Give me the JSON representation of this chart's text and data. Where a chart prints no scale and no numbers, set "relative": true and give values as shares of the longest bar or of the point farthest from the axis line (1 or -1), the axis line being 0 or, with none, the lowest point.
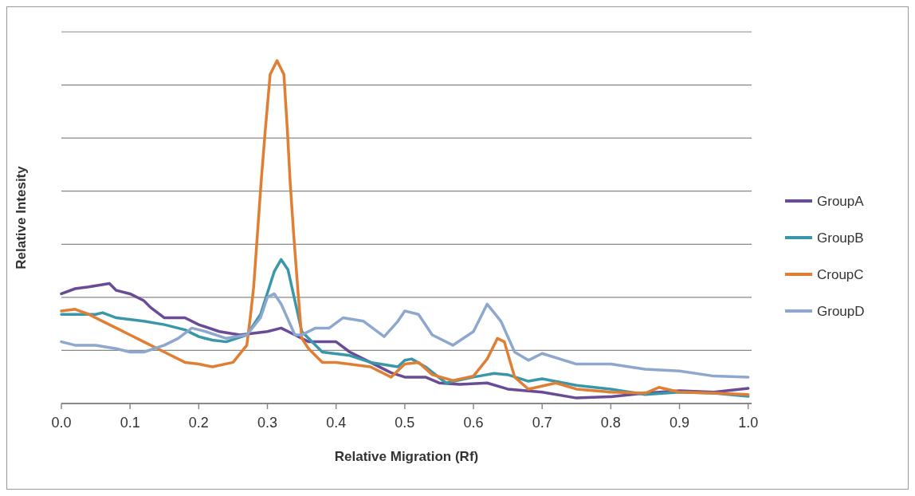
{
  "chart_data": {
    "type": "line",
    "xlabel": "Relative Migration (Rf)",
    "ylabel": "Relative Intesity",
    "relative": true,
    "grid": "y",
    "legend": "right",
    "marker": "none",
    "line_style": "solid",
    "xlim": [
      0,
      1.005
    ],
    "xticks": [
      {
        "value": 0,
        "label": "0.0"
      },
      {
        "value": 0.1,
        "label": "0.1"
      },
      {
        "value": 0.2,
        "label": "0.2"
      },
      {
        "value": 0.3,
        "label": "0.3"
      },
      {
        "value": 0.4,
        "label": "0.4"
      },
      {
        "value": 0.5,
        "label": "0.5"
      },
      {
        "value": 0.6,
        "label": "0.6"
      },
      {
        "value": 0.7,
        "label": "0.7"
      },
      {
        "value": 0.8,
        "label": "0.8"
      },
      {
        "value": 0.9,
        "label": "0.9"
      },
      {
        "value": 1,
        "label": "1.0"
      }
    ],
    "series": [
      {
        "name": "GroupA",
        "color": "#6a4b96",
        "x": [
          0,
          0.02,
          0.04,
          0.07,
          0.08,
          0.1,
          0.12,
          0.13,
          0.15,
          0.18,
          0.2,
          0.23,
          0.26,
          0.3,
          0.32,
          0.34,
          0.36,
          0.38,
          0.4,
          0.42,
          0.45,
          0.48,
          0.5,
          0.53,
          0.55,
          0.58,
          0.62,
          0.65,
          0.7,
          0.75,
          0.8,
          0.85,
          0.9,
          0.95,
          1.0
        ],
        "values": [
          0.32,
          0.335,
          0.34,
          0.35,
          0.33,
          0.32,
          0.3,
          0.28,
          0.25,
          0.25,
          0.23,
          0.21,
          0.2,
          0.21,
          0.22,
          0.2,
          0.18,
          0.18,
          0.18,
          0.15,
          0.12,
          0.09,
          0.077,
          0.077,
          0.06,
          0.056,
          0.06,
          0.042,
          0.033,
          0.016,
          0.02,
          0.03,
          0.037,
          0.033,
          0.044
        ]
      },
      {
        "name": "GroupB",
        "color": "#3a97aa",
        "x": [
          0,
          0.05,
          0.06,
          0.08,
          0.12,
          0.15,
          0.18,
          0.2,
          0.22,
          0.24,
          0.27,
          0.29,
          0.31,
          0.32,
          0.33,
          0.34,
          0.35,
          0.38,
          0.42,
          0.45,
          0.49,
          0.5,
          0.51,
          0.53,
          0.56,
          0.6,
          0.63,
          0.65,
          0.68,
          0.7,
          0.75,
          0.8,
          0.85,
          0.9,
          0.95,
          1.0
        ],
        "values": [
          0.26,
          0.26,
          0.265,
          0.25,
          0.24,
          0.23,
          0.215,
          0.195,
          0.185,
          0.18,
          0.2,
          0.26,
          0.385,
          0.42,
          0.39,
          0.3,
          0.21,
          0.15,
          0.14,
          0.12,
          0.107,
          0.126,
          0.13,
          0.107,
          0.06,
          0.077,
          0.088,
          0.084,
          0.065,
          0.072,
          0.053,
          0.042,
          0.026,
          0.033,
          0.03,
          0.021
        ]
      },
      {
        "name": "CroupC",
        "color": "#e07f33",
        "x": [
          0,
          0.02,
          0.04,
          0.06,
          0.08,
          0.1,
          0.12,
          0.15,
          0.18,
          0.2,
          0.22,
          0.25,
          0.27,
          0.275,
          0.28,
          0.291,
          0.297,
          0.304,
          0.314,
          0.324,
          0.329,
          0.333,
          0.338,
          0.344,
          0.35,
          0.36,
          0.38,
          0.4,
          0.45,
          0.48,
          0.5,
          0.52,
          0.54,
          0.57,
          0.6,
          0.62,
          0.635,
          0.645,
          0.66,
          0.68,
          0.72,
          0.75,
          0.8,
          0.85,
          0.87,
          0.9,
          0.95,
          1.0
        ],
        "values": [
          0.27,
          0.275,
          0.26,
          0.24,
          0.22,
          0.2,
          0.18,
          0.15,
          0.12,
          0.115,
          0.107,
          0.12,
          0.17,
          0.25,
          0.34,
          0.65,
          0.8,
          0.96,
          1,
          0.96,
          0.8,
          0.65,
          0.5,
          0.34,
          0.19,
          0.16,
          0.12,
          0.12,
          0.107,
          0.077,
          0.115,
          0.12,
          0.084,
          0.067,
          0.08,
          0.13,
          0.19,
          0.18,
          0.077,
          0.042,
          0.06,
          0.042,
          0.033,
          0.03,
          0.047,
          0.033,
          0.03,
          0.026
        ]
      },
      {
        "name": "GroupD",
        "color": "#8ea7cf",
        "x": [
          0,
          0.02,
          0.05,
          0.08,
          0.1,
          0.12,
          0.15,
          0.17,
          0.19,
          0.21,
          0.24,
          0.27,
          0.29,
          0.3,
          0.31,
          0.32,
          0.34,
          0.35,
          0.37,
          0.39,
          0.41,
          0.44,
          0.47,
          0.49,
          0.5,
          0.52,
          0.54,
          0.57,
          0.6,
          0.62,
          0.64,
          0.66,
          0.68,
          0.7,
          0.75,
          0.8,
          0.85,
          0.9,
          0.95,
          1.0
        ],
        "values": [
          0.18,
          0.17,
          0.17,
          0.16,
          0.15,
          0.15,
          0.17,
          0.19,
          0.22,
          0.21,
          0.19,
          0.2,
          0.25,
          0.31,
          0.32,
          0.29,
          0.2,
          0.2,
          0.22,
          0.22,
          0.25,
          0.24,
          0.195,
          0.24,
          0.27,
          0.26,
          0.2,
          0.17,
          0.21,
          0.29,
          0.24,
          0.15,
          0.126,
          0.146,
          0.115,
          0.115,
          0.1,
          0.095,
          0.08,
          0.077
        ]
      }
    ]
  }
}
